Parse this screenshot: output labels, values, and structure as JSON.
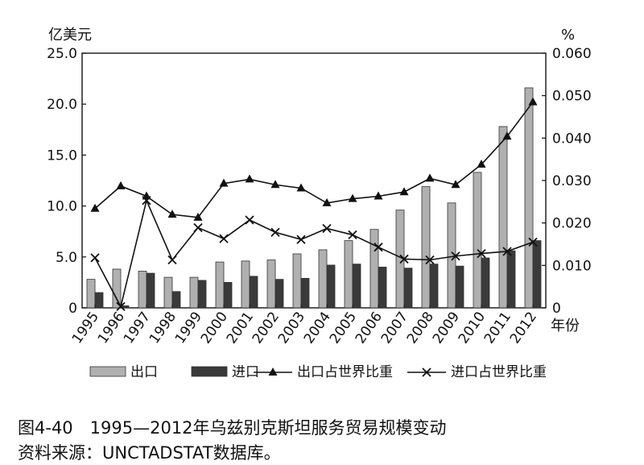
{
  "caption": {
    "figure": "图4-40　1995—2012年乌兹别克斯坦服务贸易规模变动",
    "source": "资料来源：UNCTADSTAT数据库。"
  },
  "chart_data": {
    "type": "bar",
    "categories": [
      "1995",
      "1996",
      "1997",
      "1998",
      "1999",
      "2000",
      "2001",
      "2002",
      "2003",
      "2004",
      "2005",
      "2006",
      "2007",
      "2008",
      "2009",
      "2010",
      "2011",
      "2012"
    ],
    "left_axis": {
      "unit": "亿美元",
      "ylim": [
        0,
        25
      ],
      "ticks": [
        0,
        5,
        10,
        15,
        20,
        25
      ],
      "tick_labels": [
        "0",
        "5.0",
        "10.0",
        "15.0",
        "20.0",
        "25.0"
      ]
    },
    "right_axis": {
      "unit": "%",
      "ylim": [
        0,
        0.06
      ],
      "ticks": [
        0,
        0.01,
        0.02,
        0.03,
        0.04,
        0.05,
        0.06
      ],
      "tick_labels": [
        "0",
        "0.010",
        "0.020",
        "0.030",
        "0.040",
        "0.050",
        "0.060"
      ]
    },
    "xlabel": "年份",
    "series": [
      {
        "name": "出口",
        "kind": "bar",
        "axis": "left",
        "color": "#b0b0b0",
        "values": [
          2.8,
          3.8,
          3.6,
          3.0,
          3.0,
          4.5,
          4.6,
          4.7,
          5.3,
          5.7,
          6.6,
          7.7,
          9.6,
          11.9,
          10.3,
          13.3,
          17.8,
          21.6
        ]
      },
      {
        "name": "进口",
        "kind": "bar",
        "axis": "left",
        "color": "#3a3a3a",
        "values": [
          1.5,
          0.2,
          3.4,
          1.6,
          2.7,
          2.5,
          3.1,
          2.8,
          2.9,
          4.2,
          4.3,
          4.0,
          3.9,
          4.3,
          4.1,
          4.9,
          5.6,
          6.6
        ]
      },
      {
        "name": "出口占世界比重",
        "kind": "line",
        "marker": "triangle",
        "axis": "right",
        "color": "#111111",
        "values": [
          0.0234,
          0.0287,
          0.0263,
          0.022,
          0.0213,
          0.0293,
          0.0303,
          0.029,
          0.0282,
          0.0247,
          0.0257,
          0.0263,
          0.0273,
          0.0305,
          0.029,
          0.0338,
          0.0404,
          0.0485
        ]
      },
      {
        "name": "进口占世界比重",
        "kind": "line",
        "marker": "x",
        "axis": "right",
        "color": "#111111",
        "values": [
          0.0118,
          0.0003,
          0.0253,
          0.0113,
          0.0189,
          0.0163,
          0.0207,
          0.0178,
          0.0161,
          0.0187,
          0.0172,
          0.0143,
          0.0115,
          0.0113,
          0.0122,
          0.0128,
          0.0133,
          0.0155
        ]
      }
    ]
  }
}
